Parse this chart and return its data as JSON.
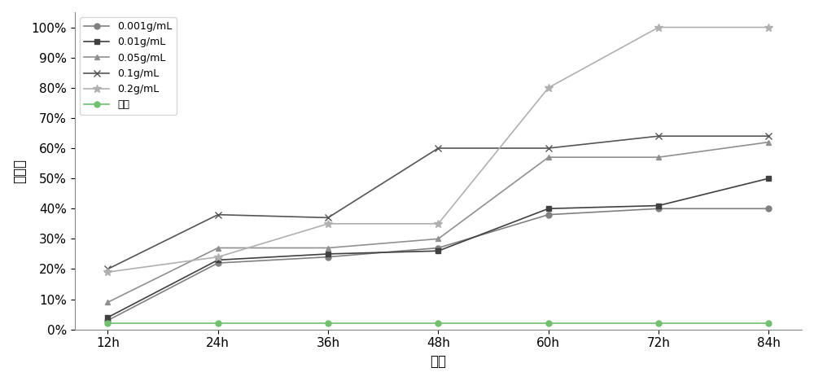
{
  "x_labels": [
    "12h",
    "24h",
    "36h",
    "48h",
    "60h",
    "72h",
    "84h"
  ],
  "x_values": [
    12,
    24,
    36,
    48,
    60,
    72,
    84
  ],
  "series": [
    {
      "label": "0.001g/mL",
      "color": "#808080",
      "marker": "o",
      "markersize": 5,
      "linewidth": 1.2,
      "values": [
        0.03,
        0.22,
        0.24,
        0.27,
        0.38,
        0.4,
        0.4
      ]
    },
    {
      "label": "0.01g/mL",
      "color": "#404040",
      "marker": "s",
      "markersize": 5,
      "linewidth": 1.2,
      "values": [
        0.04,
        0.23,
        0.25,
        0.26,
        0.4,
        0.41,
        0.5
      ]
    },
    {
      "label": "0.05g/mL",
      "color": "#909090",
      "marker": "^",
      "markersize": 5,
      "linewidth": 1.2,
      "values": [
        0.09,
        0.27,
        0.27,
        0.3,
        0.57,
        0.57,
        0.62
      ]
    },
    {
      "label": "0.1g/mL",
      "color": "#555555",
      "marker": "x",
      "markersize": 6,
      "linewidth": 1.2,
      "values": [
        0.2,
        0.38,
        0.37,
        0.6,
        0.6,
        0.64,
        0.64
      ]
    },
    {
      "label": "0.2g/mL",
      "color": "#b0b0b0",
      "marker": "*",
      "markersize": 7,
      "linewidth": 1.2,
      "values": [
        0.19,
        0.24,
        0.35,
        0.35,
        0.8,
        1.0,
        1.0
      ]
    },
    {
      "label": "清水",
      "color": "#70c070",
      "marker": "o",
      "markersize": 5,
      "linewidth": 1.2,
      "values": [
        0.02,
        0.02,
        0.02,
        0.02,
        0.02,
        0.02,
        0.02
      ]
    }
  ],
  "ylabel": "死亡率",
  "xlabel": "时间",
  "ylim": [
    0,
    1.05
  ],
  "yticks": [
    0,
    0.1,
    0.2,
    0.3,
    0.4,
    0.5,
    0.6,
    0.7,
    0.8,
    0.9,
    1.0
  ],
  "background_color": "#ffffff",
  "legend_loc": "upper left",
  "legend_fontsize": 9,
  "axis_fontsize": 11
}
